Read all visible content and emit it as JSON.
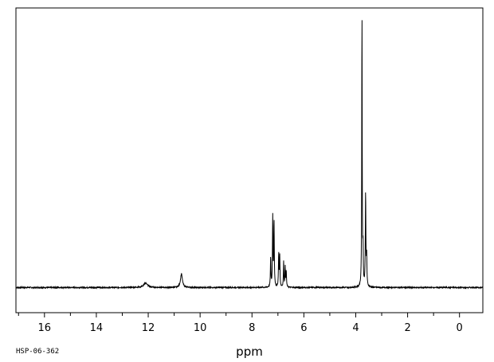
{
  "chart_data": {
    "type": "line",
    "title": "",
    "xlabel": "ppm",
    "ylabel": "",
    "xlim": [
      17.1,
      -0.9
    ],
    "x_reversed": true,
    "ylim": [
      -0.09,
      1.0
    ],
    "grid": false,
    "legend": "none",
    "x_ticks": [
      16,
      14,
      12,
      10,
      8,
      6,
      4,
      2,
      0
    ],
    "x_tick_labels": [
      "16",
      "14",
      "12",
      "10",
      "8",
      "6",
      "4",
      "2",
      "0"
    ],
    "series": [
      {
        "peaks": [
          {
            "ppm": 12.1,
            "height": 0.016,
            "width": 0.09
          },
          {
            "ppm": 10.72,
            "height": 0.048,
            "width": 0.045
          },
          {
            "ppm": 7.28,
            "height": 0.105,
            "width": 0.012
          },
          {
            "ppm": 7.2,
            "height": 0.252,
            "width": 0.012
          },
          {
            "ppm": 7.15,
            "height": 0.235,
            "width": 0.012
          },
          {
            "ppm": 6.97,
            "height": 0.118,
            "width": 0.012
          },
          {
            "ppm": 6.93,
            "height": 0.108,
            "width": 0.012
          },
          {
            "ppm": 6.78,
            "height": 0.09,
            "width": 0.012
          },
          {
            "ppm": 6.72,
            "height": 0.07,
            "width": 0.012
          },
          {
            "ppm": 6.68,
            "height": 0.056,
            "width": 0.012
          },
          {
            "ppm": 3.76,
            "height": 1.0,
            "width": 0.01
          },
          {
            "ppm": 3.72,
            "height": 0.12,
            "width": 0.012
          },
          {
            "ppm": 3.62,
            "height": 0.34,
            "width": 0.012
          },
          {
            "ppm": 3.58,
            "height": 0.11,
            "width": 0.012
          }
        ]
      }
    ]
  },
  "footer": {
    "id": "HSP-06-362"
  },
  "colors": {
    "line": "#000000",
    "background": "#ffffff"
  }
}
